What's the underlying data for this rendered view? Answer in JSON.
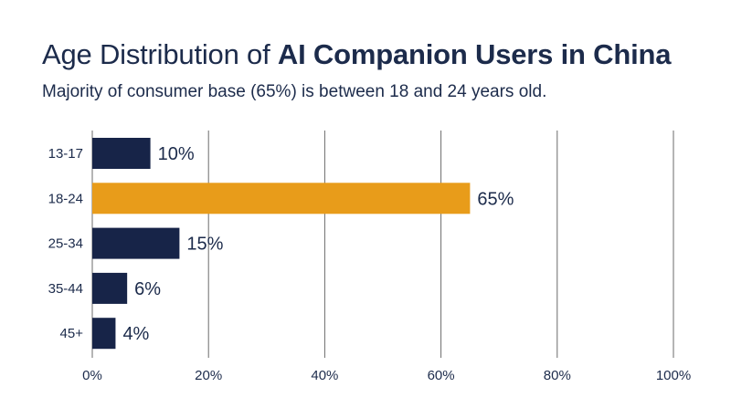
{
  "chart_data": {
    "type": "bar",
    "orientation": "horizontal",
    "title_regular": "Age Distribution of ",
    "title_bold": "AI Companion Users in China",
    "subtitle": "Majority of consumer base (65%) is between 18 and 24 years old.",
    "categories": [
      "13-17",
      "18-24",
      "25-34",
      "35-44",
      "45+"
    ],
    "values": [
      10,
      65,
      15,
      6,
      4
    ],
    "value_labels": [
      "10%",
      "65%",
      "15%",
      "6%",
      "4%"
    ],
    "x_ticks": [
      0,
      20,
      40,
      60,
      80,
      100
    ],
    "x_tick_labels": [
      "0%",
      "20%",
      "40%",
      "60%",
      "80%",
      "100%"
    ],
    "xlim": [
      0,
      100
    ],
    "xlabel": "",
    "ylabel": "",
    "grid": true,
    "highlight_category": "18-24",
    "colors": {
      "default_bar": "#172448",
      "highlight_bar": "#e89c1a",
      "grid": "#6b6b6b",
      "text": "#1c2b4b"
    }
  }
}
